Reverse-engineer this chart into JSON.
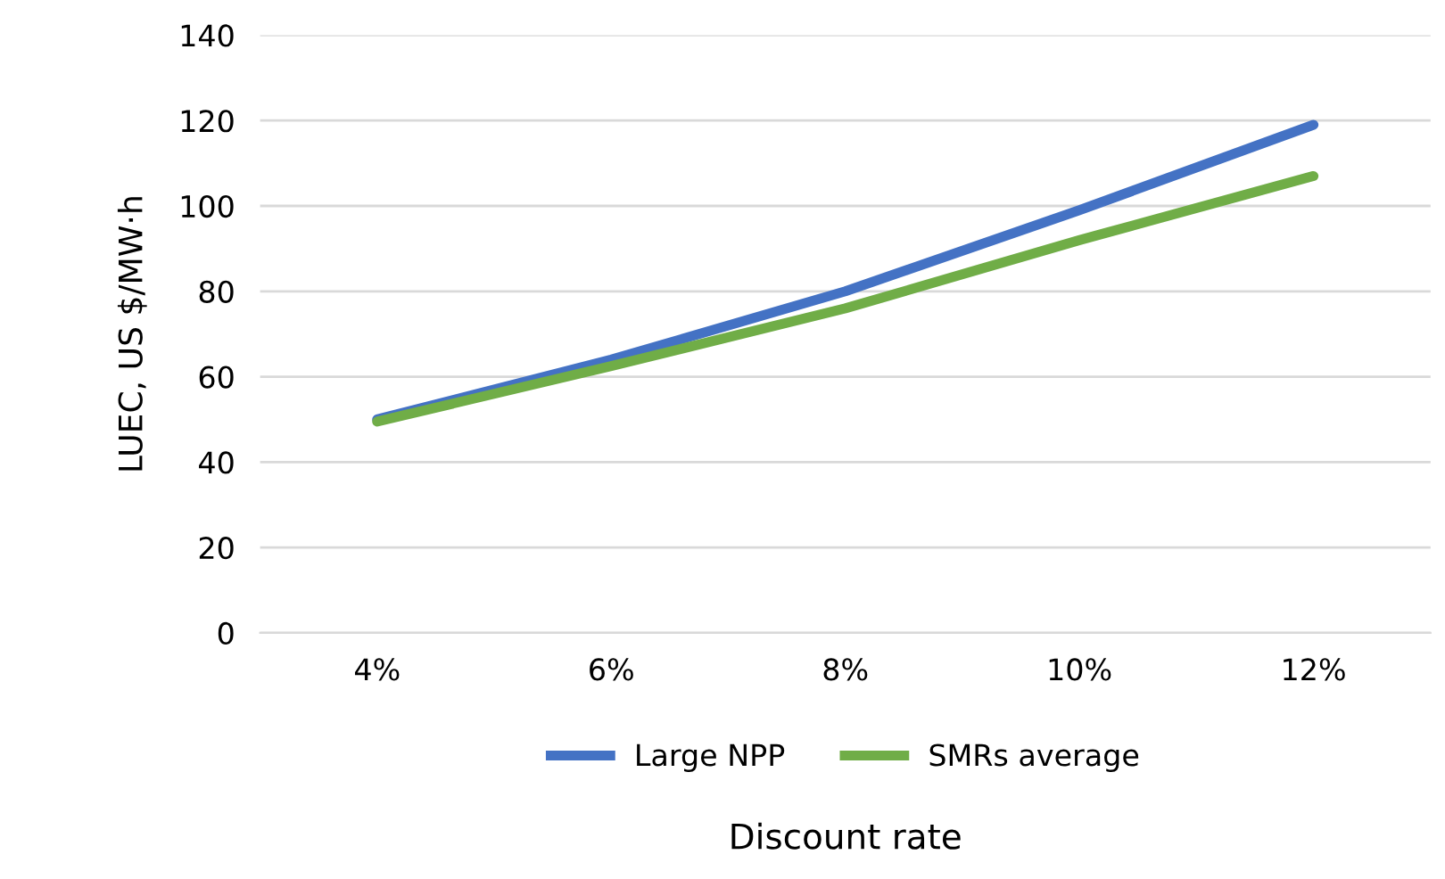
{
  "chart_data": {
    "type": "line",
    "xlabel": "Discount rate",
    "ylabel": "LUEC, US $/MW·h",
    "categories": [
      "4%",
      "6%",
      "8%",
      "10%",
      "12%"
    ],
    "series": [
      {
        "name": "Large NPP",
        "color": "#4472c4",
        "values": [
          50,
          64,
          80,
          99,
          119
        ]
      },
      {
        "name": "SMRs average",
        "color": "#70ad47",
        "values": [
          49.5,
          62.5,
          76,
          92,
          107
        ]
      }
    ],
    "ylim": [
      0,
      140
    ],
    "yticks": [
      0,
      20,
      40,
      60,
      80,
      100,
      120,
      140
    ],
    "grid": "y",
    "legend": "bottom",
    "marker": "none",
    "line_style": "solid"
  }
}
